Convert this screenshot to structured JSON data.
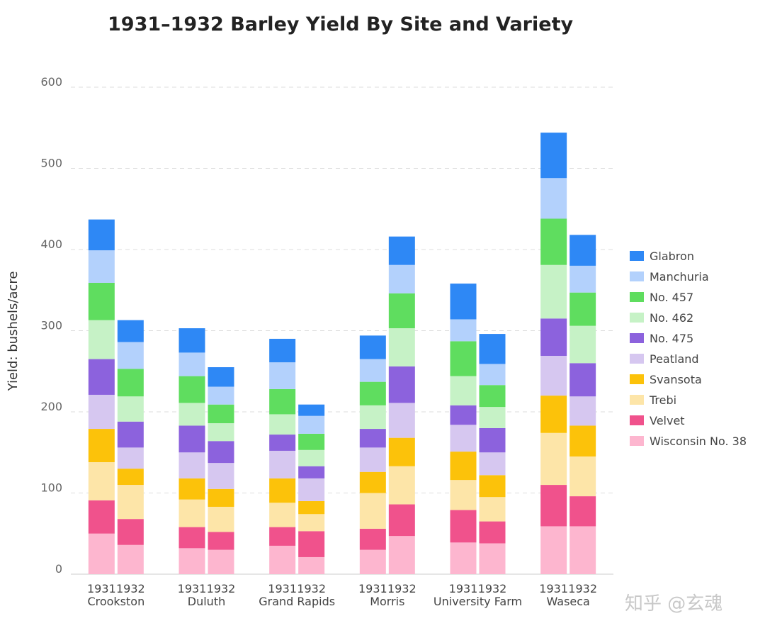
{
  "chart_data": {
    "type": "bar",
    "stacked": true,
    "title": "1931–1932 Barley Yield By Site and Variety",
    "ylabel": "Yield: bushels/acre",
    "xlabel": "",
    "ylim": [
      0,
      600
    ],
    "yticks": [
      0,
      100,
      200,
      300,
      400,
      500,
      600
    ],
    "grid": true,
    "legend": "right",
    "sites": [
      "Crookston",
      "Duluth",
      "Grand Rapids",
      "Morris",
      "University Farm",
      "Waseca"
    ],
    "years": [
      "1931",
      "1932"
    ],
    "series": [
      {
        "name": "Wisconsin No. 38",
        "color": "#fdb6cf",
        "values": [
          [
            50,
            36
          ],
          [
            32,
            30
          ],
          [
            35,
            21
          ],
          [
            30,
            47
          ],
          [
            39,
            38
          ],
          [
            59,
            59
          ]
        ]
      },
      {
        "name": "Velvet",
        "color": "#f0528c",
        "values": [
          [
            41,
            32
          ],
          [
            26,
            22
          ],
          [
            23,
            32
          ],
          [
            26,
            39
          ],
          [
            40,
            27
          ],
          [
            51,
            37
          ]
        ]
      },
      {
        "name": "Trebi",
        "color": "#fde5a8",
        "values": [
          [
            47,
            42
          ],
          [
            34,
            31
          ],
          [
            30,
            21
          ],
          [
            44,
            47
          ],
          [
            37,
            30
          ],
          [
            64,
            49
          ]
        ]
      },
      {
        "name": "Svansota",
        "color": "#fcc20a",
        "values": [
          [
            41,
            20
          ],
          [
            26,
            22
          ],
          [
            30,
            16
          ],
          [
            26,
            35
          ],
          [
            35,
            27
          ],
          [
            46,
            38
          ]
        ]
      },
      {
        "name": "Peatland",
        "color": "#d6c7f0",
        "values": [
          [
            42,
            26
          ],
          [
            32,
            32
          ],
          [
            34,
            28
          ],
          [
            30,
            43
          ],
          [
            33,
            28
          ],
          [
            49,
            36
          ]
        ]
      },
      {
        "name": "No. 475",
        "color": "#8c62dd",
        "values": [
          [
            44,
            32
          ],
          [
            33,
            27
          ],
          [
            20,
            15
          ],
          [
            23,
            45
          ],
          [
            24,
            30
          ],
          [
            46,
            41
          ]
        ]
      },
      {
        "name": "No. 462",
        "color": "#c6f2c6",
        "values": [
          [
            48,
            31
          ],
          [
            28,
            22
          ],
          [
            25,
            20
          ],
          [
            29,
            47
          ],
          [
            36,
            26
          ],
          [
            66,
            46
          ]
        ]
      },
      {
        "name": "No. 457",
        "color": "#5fdd5f",
        "values": [
          [
            46,
            34
          ],
          [
            33,
            23
          ],
          [
            31,
            20
          ],
          [
            29,
            43
          ],
          [
            43,
            27
          ],
          [
            57,
            41
          ]
        ]
      },
      {
        "name": "Manchuria",
        "color": "#b3d1fc",
        "values": [
          [
            40,
            33
          ],
          [
            29,
            22
          ],
          [
            33,
            22
          ],
          [
            28,
            35
          ],
          [
            27,
            26
          ],
          [
            50,
            33
          ]
        ]
      },
      {
        "name": "Glabron",
        "color": "#2e88f5",
        "values": [
          [
            38,
            27
          ],
          [
            30,
            24
          ],
          [
            29,
            14
          ],
          [
            29,
            35
          ],
          [
            44,
            37
          ],
          [
            56,
            38
          ]
        ]
      }
    ],
    "legend_order": [
      "Glabron",
      "Manchuria",
      "No. 457",
      "No. 462",
      "No. 475",
      "Peatland",
      "Svansota",
      "Trebi",
      "Velvet",
      "Wisconsin No. 38"
    ]
  },
  "watermark": "知乎 @玄魂"
}
